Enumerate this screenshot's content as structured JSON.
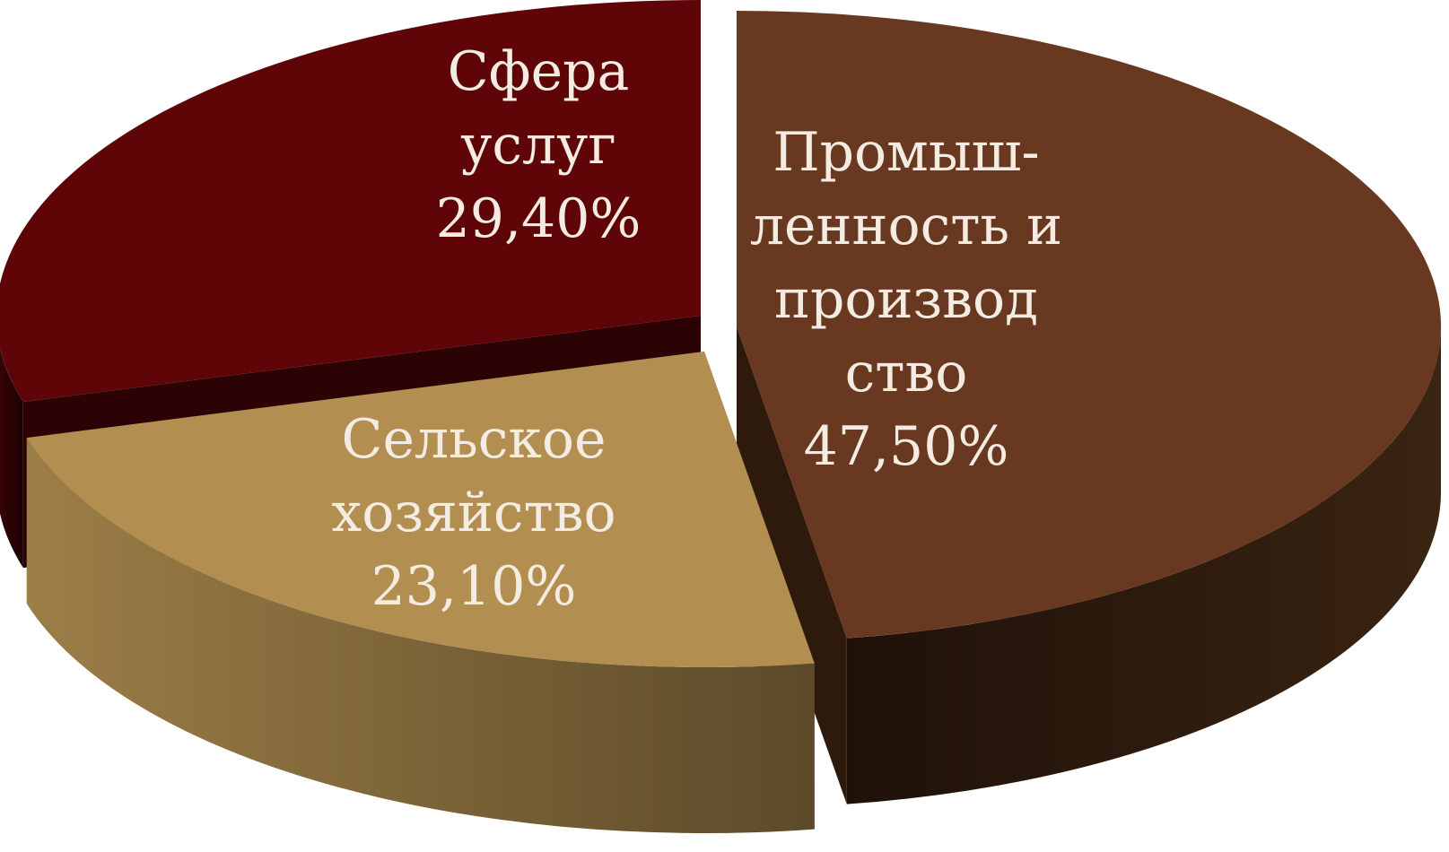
{
  "chart_data": {
    "type": "pie",
    "style": "3d-exploded",
    "title": "",
    "slices": [
      {
        "key": "industry",
        "label_lines": [
          "Промыш-",
          "ленность и",
          "производ",
          "ство"
        ],
        "value_label": "47,50%",
        "value": 47.5,
        "top_color": "#693821",
        "side_color": "#2d1a0d"
      },
      {
        "key": "agriculture",
        "label_lines": [
          "Сельское",
          "хозяйство"
        ],
        "value_label": "23,10%",
        "value": 23.1,
        "top_color": "#b28f51",
        "side_color": "#7c6338"
      },
      {
        "key": "services",
        "label_lines": [
          "Сфера",
          "услуг"
        ],
        "value_label": "29,40%",
        "value": 29.4,
        "top_color": "#5f0508",
        "side_color": "#2b0305"
      }
    ]
  }
}
